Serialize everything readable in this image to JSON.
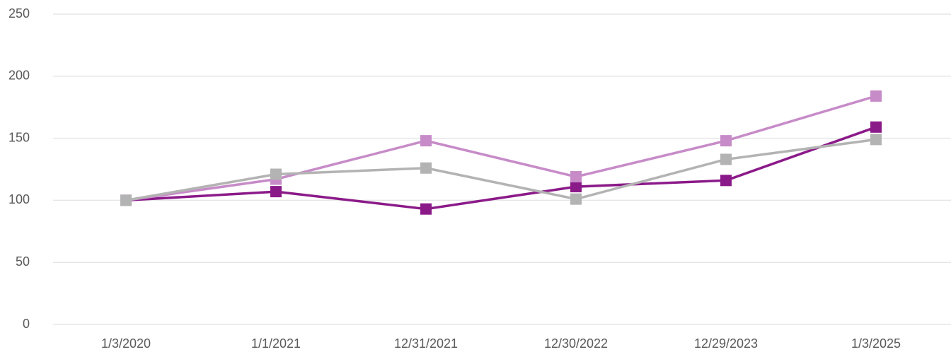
{
  "chart_data": {
    "type": "line",
    "categories": [
      "1/3/2020",
      "1/1/2021",
      "12/31/2021",
      "12/30/2022",
      "12/29/2023",
      "1/3/2025"
    ],
    "series": [
      {
        "color": "#8b1a89",
        "values": [
          100,
          107,
          93,
          111,
          116,
          159
        ]
      },
      {
        "color": "#c78bc8",
        "values": [
          100,
          117,
          148,
          119,
          148,
          184
        ]
      },
      {
        "color": "#b3b3b3",
        "values": [
          100,
          121,
          126,
          101,
          133,
          149
        ]
      }
    ],
    "ylim": [
      0,
      250
    ],
    "yticks": [
      0,
      50,
      100,
      150,
      200,
      250
    ],
    "grid": true
  }
}
